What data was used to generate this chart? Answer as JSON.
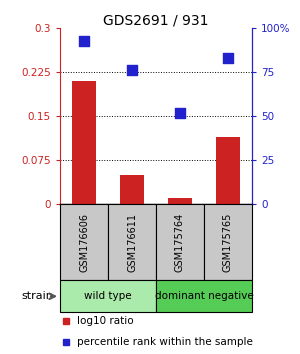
{
  "title": "GDS2691 / 931",
  "samples": [
    "GSM176606",
    "GSM176611",
    "GSM175764",
    "GSM175765"
  ],
  "log10_ratio": [
    0.21,
    0.05,
    0.01,
    0.115
  ],
  "percentile_rank": [
    0.93,
    0.76,
    0.52,
    0.83
  ],
  "ylim_left": [
    0,
    0.3
  ],
  "ylim_right": [
    0,
    1.0
  ],
  "yticks_left": [
    0,
    0.075,
    0.15,
    0.225,
    0.3
  ],
  "ytick_labels_left": [
    "0",
    "0.075",
    "0.15",
    "0.225",
    "0.3"
  ],
  "yticks_right": [
    0,
    0.25,
    0.5,
    0.75,
    1.0
  ],
  "ytick_labels_right": [
    "0",
    "25",
    "50",
    "75",
    "100%"
  ],
  "hlines": [
    0.075,
    0.15,
    0.225
  ],
  "strain_groups": [
    {
      "label": "wild type",
      "samples": [
        0,
        1
      ],
      "color": "#aaeaaa"
    },
    {
      "label": "dominant negative",
      "samples": [
        2,
        3
      ],
      "color": "#55cc55"
    }
  ],
  "bar_color": "#cc2222",
  "dot_color": "#2222cc",
  "bar_width": 0.5,
  "dot_size": 45,
  "strain_label": "strain",
  "legend_bar_label": "log10 ratio",
  "legend_dot_label": "percentile rank within the sample",
  "tick_label_color_left": "#cc2222",
  "tick_label_color_right": "#2222cc",
  "sample_box_color": "#c8c8c8"
}
